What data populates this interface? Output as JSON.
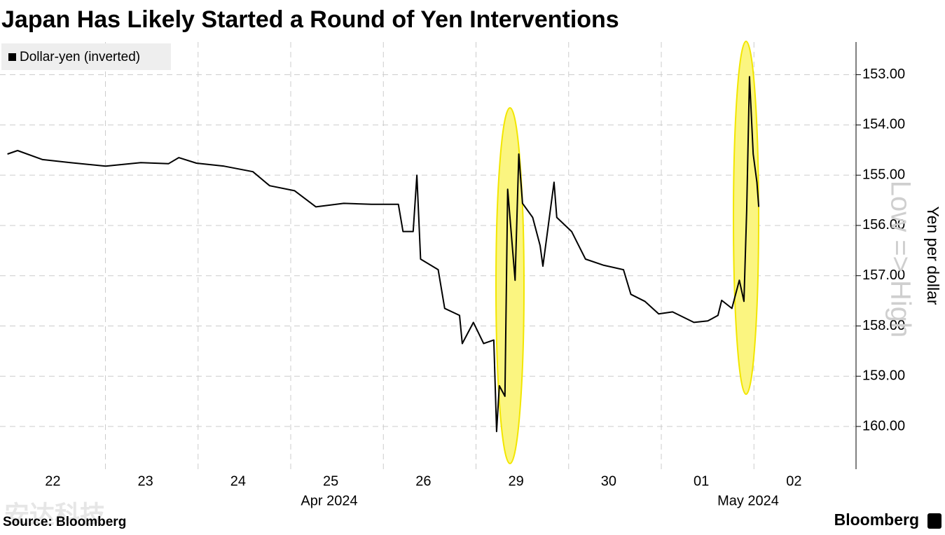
{
  "chart_data": {
    "type": "line",
    "title": "Japan Has Likely Started a Round of Yen Interventions",
    "y_label": "Yen per dollar",
    "direction_label": "Low => High",
    "month_labels": [
      "Apr 2024",
      "May 2024"
    ],
    "source": "Source: Bloomberg",
    "brand": "Bloomberg",
    "watermark": "安达科技",
    "invert_y": true,
    "grid": true,
    "legend": "top-left",
    "xlim": [
      -0.57,
      8.67
    ],
    "xticks": [
      {
        "value": 0,
        "label": "22"
      },
      {
        "value": 1,
        "label": "23"
      },
      {
        "value": 2,
        "label": "24"
      },
      {
        "value": 3,
        "label": "25"
      },
      {
        "value": 4,
        "label": "26"
      },
      {
        "value": 5,
        "label": "29"
      },
      {
        "value": 6,
        "label": "30"
      },
      {
        "value": 7,
        "label": "01"
      },
      {
        "value": 8,
        "label": "02"
      }
    ],
    "ylim": [
      152.35,
      160.85
    ],
    "yticks": [
      {
        "value": 153,
        "label": "153.00"
      },
      {
        "value": 154,
        "label": "154.00"
      },
      {
        "value": 155,
        "label": "155.00"
      },
      {
        "value": 156,
        "label": "156.00"
      },
      {
        "value": 157,
        "label": "157.00"
      },
      {
        "value": 158,
        "label": "158.00"
      },
      {
        "value": 159,
        "label": "159.00"
      },
      {
        "value": 160,
        "label": "160.00"
      }
    ],
    "series": [
      {
        "name": "Dollar-yen (inverted)",
        "color": "#000000",
        "x": [
          -0.49,
          -0.38,
          -0.11,
          0.19,
          0.57,
          0.95,
          1.25,
          1.36,
          1.55,
          1.85,
          2.16,
          2.34,
          2.61,
          2.84,
          3.14,
          3.44,
          3.73,
          3.78,
          3.89,
          3.93,
          3.97,
          4.16,
          4.23,
          4.39,
          4.42,
          4.54,
          4.65,
          4.76,
          4.79,
          4.82,
          4.88,
          4.91,
          4.99,
          5.03,
          5.07,
          5.18,
          5.26,
          5.29,
          5.41,
          5.44,
          5.6,
          5.75,
          5.94,
          6.16,
          6.24,
          6.39,
          6.54,
          6.69,
          6.92,
          7.07,
          7.18,
          7.22,
          7.33,
          7.41,
          7.46,
          7.49,
          7.52,
          7.56,
          7.6,
          7.62
        ],
        "values": [
          154.58,
          154.51,
          154.69,
          154.75,
          154.82,
          154.75,
          154.77,
          154.65,
          154.76,
          154.82,
          154.93,
          155.21,
          155.31,
          155.63,
          155.56,
          155.58,
          155.58,
          156.12,
          156.12,
          155.0,
          156.67,
          156.88,
          157.65,
          157.79,
          158.35,
          157.93,
          158.35,
          158.28,
          160.1,
          159.19,
          159.4,
          155.28,
          157.09,
          154.58,
          155.56,
          155.84,
          156.4,
          156.81,
          155.14,
          155.84,
          156.12,
          156.67,
          156.79,
          156.88,
          157.37,
          157.51,
          157.76,
          157.72,
          157.93,
          157.9,
          157.79,
          157.49,
          157.65,
          157.09,
          157.51,
          155.7,
          153.04,
          154.58,
          155.14,
          155.63
        ]
      }
    ]
  }
}
